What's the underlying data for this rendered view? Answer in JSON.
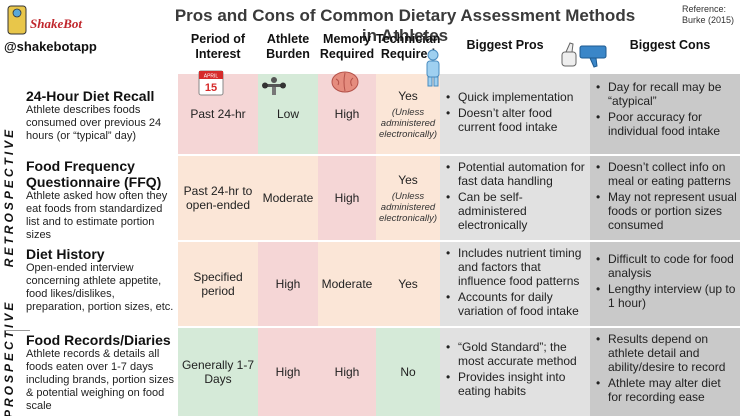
{
  "title": "Pros and Cons of Common Dietary Assessment Methods in Athletes",
  "reference": [
    "Reference:",
    "Burke (2015)"
  ],
  "handle": "@shakebotapp",
  "logo_text": "ShakeBot",
  "headers": {
    "period": "Period of Interest",
    "burden": "Athlete Burden",
    "memory": "Memory Required",
    "technician": "Technician Required",
    "pros": "Biggest Pros",
    "cons": "Biggest Cons"
  },
  "side_labels": {
    "retrospective": "RETROSPECTIVE",
    "prospective": "PROSPECTIVE"
  },
  "calendar_icon": {
    "month": "APRIL",
    "day": "15"
  },
  "methods": [
    {
      "name": "24-Hour Diet Recall",
      "description": "Athlete describes foods consumed over previous 24 hours (or “typical” day)",
      "period": "Past 24-hr",
      "burden": "Low",
      "memory": "High",
      "technician": "Yes",
      "technician_note": "(Unless administered electronically)",
      "pros": [
        "Quick implementation",
        "Doesn’t alter food current food intake"
      ],
      "cons": [
        "Day for recall may be “atypical”",
        "Poor accuracy for individual food intake"
      ]
    },
    {
      "name": "Food Frequency Questionnaire (FFQ)",
      "description": "Athlete asked how often they eat foods from standardized list and to estimate portion sizes",
      "period": "Past 24-hr to open-ended",
      "burden": "Moderate",
      "memory": "High",
      "technician": "Yes",
      "technician_note": "(Unless administered electronically)",
      "pros": [
        "Potential automation for fast data handling",
        "Can be self-administered electronically"
      ],
      "cons": [
        "Doesn’t collect info on meal or eating patterns",
        "May not represent usual foods or portion sizes consumed"
      ]
    },
    {
      "name": "Diet History",
      "description": "Open-ended interview concerning athlete appetite, food likes/dislikes, preparation, portion sizes, etc.",
      "period": "Specified period",
      "burden": "High",
      "memory": "Moderate",
      "technician": "Yes",
      "technician_note": "",
      "pros": [
        "Includes nutrient timing and factors that influence food patterns",
        "Accounts for daily variation of food intake"
      ],
      "cons": [
        "Difficult to code for food analysis",
        "Lengthy interview (up to 1 hour)"
      ]
    },
    {
      "name": "Food Records/Diaries",
      "description": "Athlete records & details all foods eaten over 1-7 days including brands, portion sizes & potential weighing on food scale",
      "period": "Generally 1-7 Days",
      "burden": "High",
      "memory": "High",
      "technician": "No",
      "technician_note": "",
      "pros": [
        "“Gold Standard”; the most accurate method",
        "Provides insight into eating habits"
      ],
      "cons": [
        "Results depend on athlete detail and ability/desire to record",
        "Athlete may alter diet for recording ease"
      ]
    }
  ]
}
